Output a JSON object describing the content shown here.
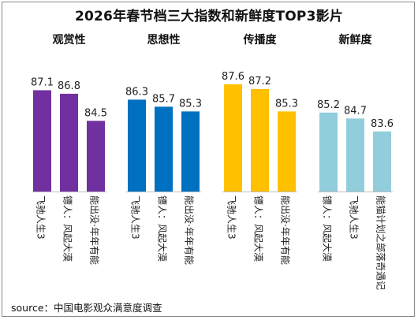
{
  "title": "2026年春节档三大指数和新鲜度TOP3影片",
  "source": "source：中国电影观众满意度调查",
  "chart_data": [
    {
      "type": "bar",
      "title": "观赏性",
      "color": "#7030a0",
      "categories": [
        "飞驰人生3",
        "镖人：风起大漠",
        "能出没·年年有能"
      ],
      "values": [
        87.1,
        86.8,
        84.5
      ]
    },
    {
      "type": "bar",
      "title": "思想性",
      "color": "#0070c0",
      "categories": [
        "飞驰人生3",
        "镖人：风起大漠",
        "能出没·年年有能"
      ],
      "values": [
        86.3,
        85.7,
        85.3
      ]
    },
    {
      "type": "bar",
      "title": "传播度",
      "color": "#ffc000",
      "categories": [
        "飞驰人生3",
        "镖人：风起大漠",
        "能出没·年年有能"
      ],
      "values": [
        87.6,
        87.2,
        85.3
      ]
    },
    {
      "type": "bar",
      "title": "新鲜度",
      "color": "#92cddc",
      "categories": [
        "镖人：风起大漠",
        "飞驰人生3",
        "能猫计划之部落奇遇记"
      ],
      "values": [
        85.2,
        84.7,
        83.6
      ]
    }
  ]
}
